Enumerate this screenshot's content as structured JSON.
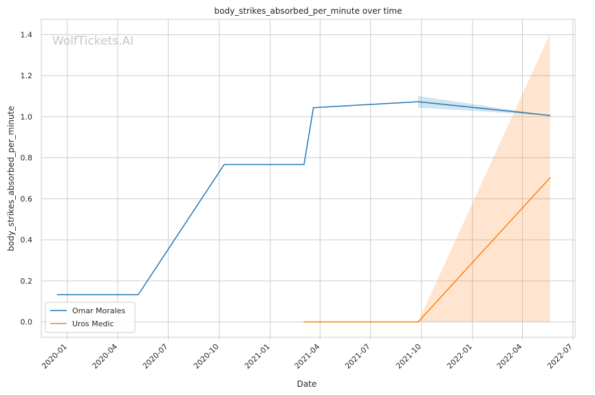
{
  "chart_data": {
    "type": "line",
    "title": "body_strikes_absorbed_per_minute over time",
    "xlabel": "Date",
    "ylabel": "body_strikes_absorbed_per_minute",
    "watermark": "WolfTickets.AI",
    "x_range": [
      "2019-11-15",
      "2022-07-05"
    ],
    "ylim": [
      -0.075,
      1.475
    ],
    "x_ticks": [
      "2020-01",
      "2020-04",
      "2020-07",
      "2020-10",
      "2021-01",
      "2021-04",
      "2021-07",
      "2021-10",
      "2022-01",
      "2022-04",
      "2022-07"
    ],
    "y_ticks": [
      "0.0",
      "0.2",
      "0.4",
      "0.6",
      "0.8",
      "1.0",
      "1.2",
      "1.4"
    ],
    "grid": true,
    "legend_position": "lower-left",
    "series": [
      {
        "name": "Omar Morales",
        "color": "#1f77b4",
        "points": [
          {
            "x": "2019-12-14",
            "y": 0.133
          },
          {
            "x": "2020-05-08",
            "y": 0.133
          },
          {
            "x": "2020-10-10",
            "y": 0.767
          },
          {
            "x": "2021-03-03",
            "y": 0.767
          },
          {
            "x": "2021-03-20",
            "y": 1.044
          },
          {
            "x": "2021-09-25",
            "y": 1.073
          },
          {
            "x": "2022-05-21",
            "y": 1.006
          }
        ],
        "band": [
          {
            "x": "2021-09-25",
            "lo": 1.044,
            "hi": 1.101
          },
          {
            "x": "2022-05-21",
            "lo": 1.006,
            "hi": 1.006
          }
        ]
      },
      {
        "name": "Uros Medic",
        "color": "#ff7f0e",
        "points": [
          {
            "x": "2021-03-03",
            "y": 0.0
          },
          {
            "x": "2021-09-25",
            "y": 0.0
          },
          {
            "x": "2022-05-21",
            "y": 0.703
          }
        ],
        "band": [
          {
            "x": "2021-09-25",
            "lo": 0.0,
            "hi": 0.0
          },
          {
            "x": "2022-05-21",
            "lo": 0.0,
            "hi": 1.406
          }
        ]
      }
    ]
  }
}
